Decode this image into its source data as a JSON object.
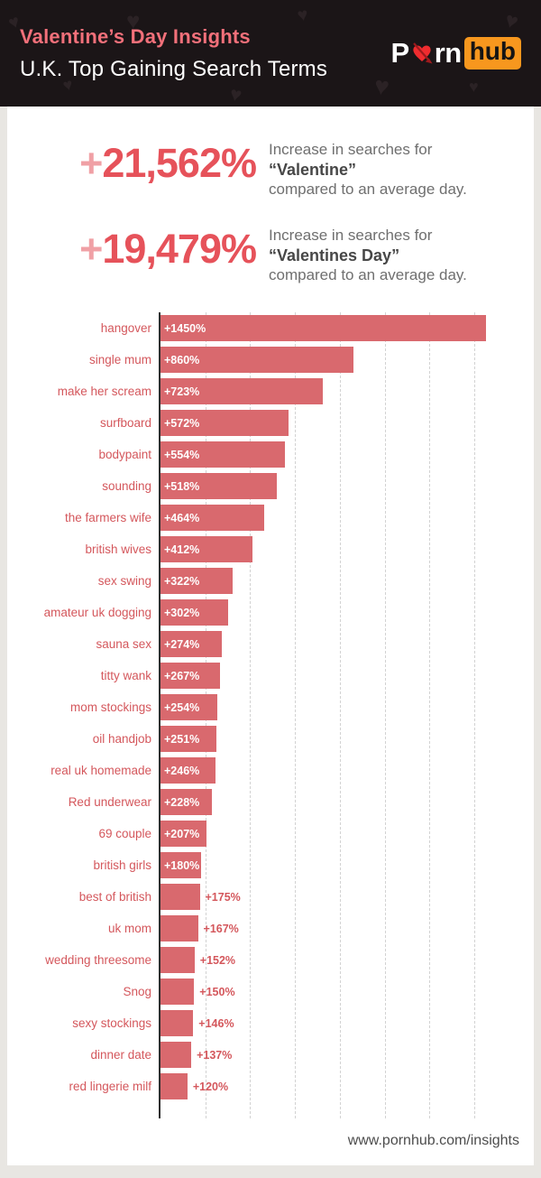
{
  "header": {
    "title": "Valentine’s Day Insights",
    "subtitle": "U.K. Top Gaining Search Terms",
    "logo": {
      "p": "P",
      "rn": "rn",
      "hub": "hub"
    }
  },
  "stats": {
    "items": [
      {
        "plus": "+",
        "number": "21,562%",
        "line1": "Increase in searches for",
        "term": "“Valentine”",
        "line2": "compared to an average day."
      },
      {
        "plus": "+",
        "number": "19,479%",
        "line1": "Increase in searches for",
        "term": "“Valentines Day”",
        "line2": "compared to an average day."
      }
    ]
  },
  "chart_data": {
    "type": "bar",
    "orientation": "horizontal",
    "title": "",
    "xlabel": "",
    "ylabel": "",
    "categories": [
      "hangover",
      "single mum",
      "make her scream",
      "surfboard",
      "bodypaint",
      "sounding",
      "the farmers wife",
      "british wives",
      "sex swing",
      "amateur uk dogging",
      "sauna sex",
      "titty wank",
      "mom stockings",
      "oil handjob",
      "real uk homemade",
      "Red underwear",
      "69 couple",
      "british girls",
      "best of british",
      "uk mom",
      "wedding threesome",
      "Snog",
      "sexy stockings",
      "dinner date",
      "red lingerie milf"
    ],
    "values": [
      1450,
      860,
      723,
      572,
      554,
      518,
      464,
      412,
      322,
      302,
      274,
      267,
      254,
      251,
      246,
      228,
      207,
      180,
      175,
      167,
      152,
      150,
      146,
      137,
      120
    ],
    "labels": [
      "+1450%",
      "+860%",
      "+723%",
      "+572%",
      "+554%",
      "+518%",
      "+464%",
      "+412%",
      "+322%",
      "+302%",
      "+274%",
      "+267%",
      "+254%",
      "+251%",
      "+246%",
      "+228%",
      "+207%",
      "+180%",
      "+175%",
      "+167%",
      "+152%",
      "+150%",
      "+146%",
      "+137%",
      "+120%"
    ],
    "xlim": [
      0,
      1480
    ],
    "gridline_step": 200,
    "grid": true,
    "legend": false,
    "inside_label_min_value": 178,
    "bar_color": "#d9696e",
    "label_color": "#d4575c"
  },
  "footer": {
    "url": "www.pornhub.com/insights"
  },
  "colors": {
    "header_bg": "#1b1517",
    "accent_pink": "#f2707a",
    "stat_number": "#e6525a",
    "stat_plus": "#f0a0a5",
    "logo_orange": "#f7971e",
    "logo_heart_red": "#ef2c2f",
    "bar": "#d9696e"
  }
}
